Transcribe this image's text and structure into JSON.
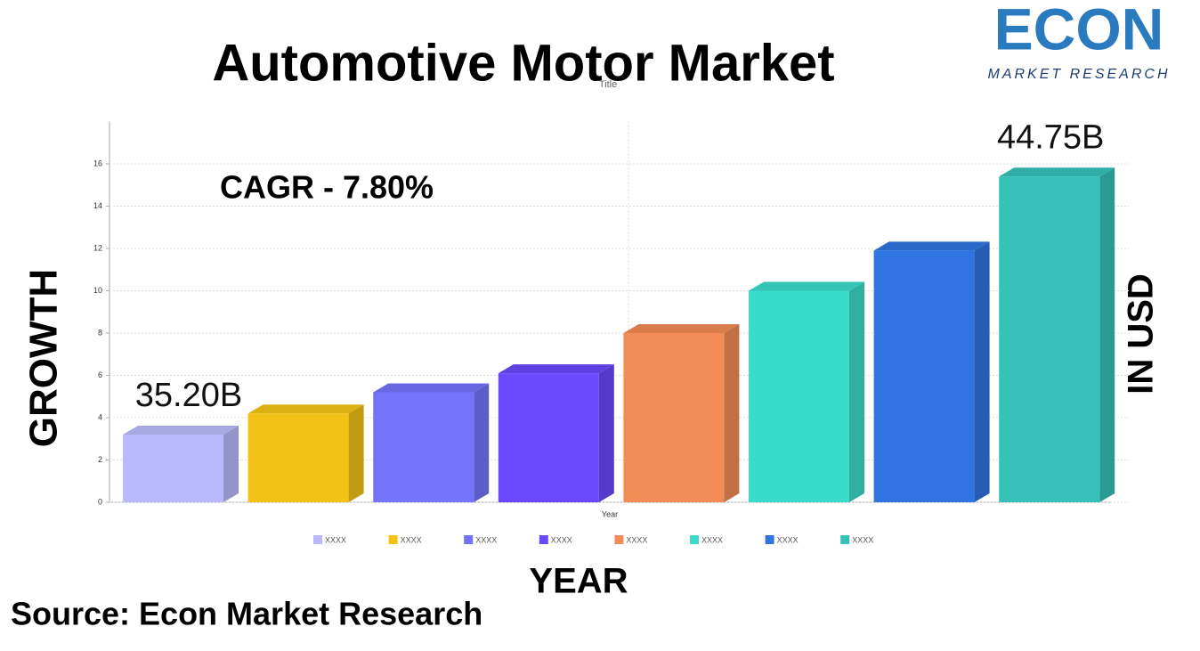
{
  "chart_data": {
    "type": "bar",
    "title": "Automotive Motor Market",
    "subtitle": "Title",
    "x_label": "Year",
    "y_label": "GROWTH",
    "y2_label": "IN USD",
    "footer_label": "YEAR",
    "source": "Source: Econ Market Research",
    "cagr": "CAGR - 7.80%",
    "callouts": [
      "35.20B",
      "44.75B"
    ],
    "logo": {
      "name": "ECON",
      "tagline": "MARKET RESEARCH"
    },
    "categories": [
      null
    ],
    "series": [
      {
        "name": "XXXX",
        "color": "#b9b9fb",
        "values": [
          3.2
        ]
      },
      {
        "name": "XXXX",
        "color": "#f2c314",
        "values": [
          4.2
        ]
      },
      {
        "name": "XXXX",
        "color": "#7474fb",
        "values": [
          5.2
        ]
      },
      {
        "name": "XXXX",
        "color": "#6a48fb",
        "values": [
          6.1
        ]
      },
      {
        "name": "XXXX",
        "color": "#f28b55",
        "values": [
          8.0
        ]
      },
      {
        "name": "XXXX",
        "color": "#3adbc8",
        "values": [
          10
        ]
      },
      {
        "name": "XXXX",
        "color": "#2f74e0",
        "values": [
          11.9
        ]
      },
      {
        "name": "XXXX",
        "color": "#35c1b8",
        "values": [
          15.4
        ]
      }
    ],
    "ylim": [
      0,
      18
    ],
    "yticks": [
      0,
      2,
      4,
      6,
      8,
      10,
      12,
      14,
      16
    ],
    "grid": true
  }
}
